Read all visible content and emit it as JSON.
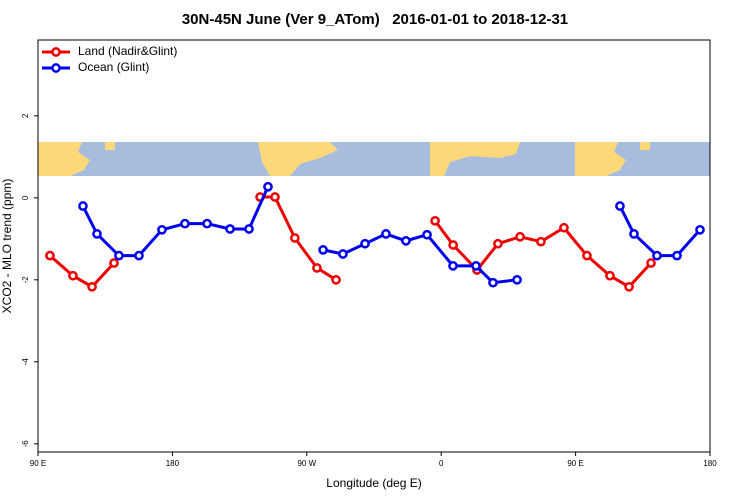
{
  "chart_data": {
    "type": "line",
    "title": "30N-45N June (Ver 9_ATom)   2016-01-01 to 2018-12-31",
    "xlabel": "Longitude (deg E)",
    "ylabel": "XCO2 - MLO trend (ppm)",
    "xlim": [
      90,
      540
    ],
    "ylim": [
      -6.2,
      3.85
    ],
    "xticks": [
      {
        "value": 90,
        "label": "90 E"
      },
      180,
      {
        "value": 270,
        "label": "90 W"
      },
      {
        "value": 360,
        "label": "0"
      },
      {
        "value": 450,
        "label": "90 E"
      },
      {
        "value": 540,
        "label": "180"
      }
    ],
    "yticks": [
      -6,
      -4,
      -2,
      0,
      2
    ],
    "legend": "upper left",
    "series": [
      {
        "name": "Land (Nadir&Glint)",
        "color": "#ee0000",
        "x": [
          98,
          113.4,
          126.2,
          140.9,
          null,
          238.7,
          248.7,
          262,
          276.8,
          289.6,
          null,
          355.9,
          368,
          384,
          398,
          412.8,
          426.8,
          442.2,
          457.6,
          473,
          485.8,
          500.5
        ],
        "values": [
          -1.41,
          -1.9,
          -2.17,
          -1.59,
          null,
          0.02,
          0.02,
          -0.98,
          -1.71,
          -2.0,
          null,
          -0.56,
          -1.15,
          -1.76,
          -1.12,
          -0.95,
          -1.07,
          -0.73,
          -1.41,
          -1.9,
          -2.17,
          -1.59
        ]
      },
      {
        "name": "Ocean (Glint)",
        "color": "#0000ee",
        "x": [
          120.1,
          129.5,
          144.2,
          157.6,
          173,
          188.4,
          203.2,
          218.6,
          231.3,
          244,
          null,
          280.9,
          294.2,
          309,
          323,
          336.4,
          350.5,
          367.9,
          383.3,
          394.7,
          410.8,
          null,
          479.7,
          489.1,
          504.5,
          517.9,
          533.3
        ],
        "values": [
          -0.2,
          -0.88,
          -1.41,
          -1.41,
          -0.78,
          -0.63,
          -0.63,
          -0.76,
          -0.76,
          0.27,
          null,
          -1.27,
          -1.37,
          -1.12,
          -0.88,
          -1.05,
          -0.9,
          -1.66,
          -1.66,
          -2.07,
          -2.0,
          null,
          -0.2,
          -0.88,
          -1.41,
          -1.41,
          -0.78
        ]
      }
    ]
  }
}
